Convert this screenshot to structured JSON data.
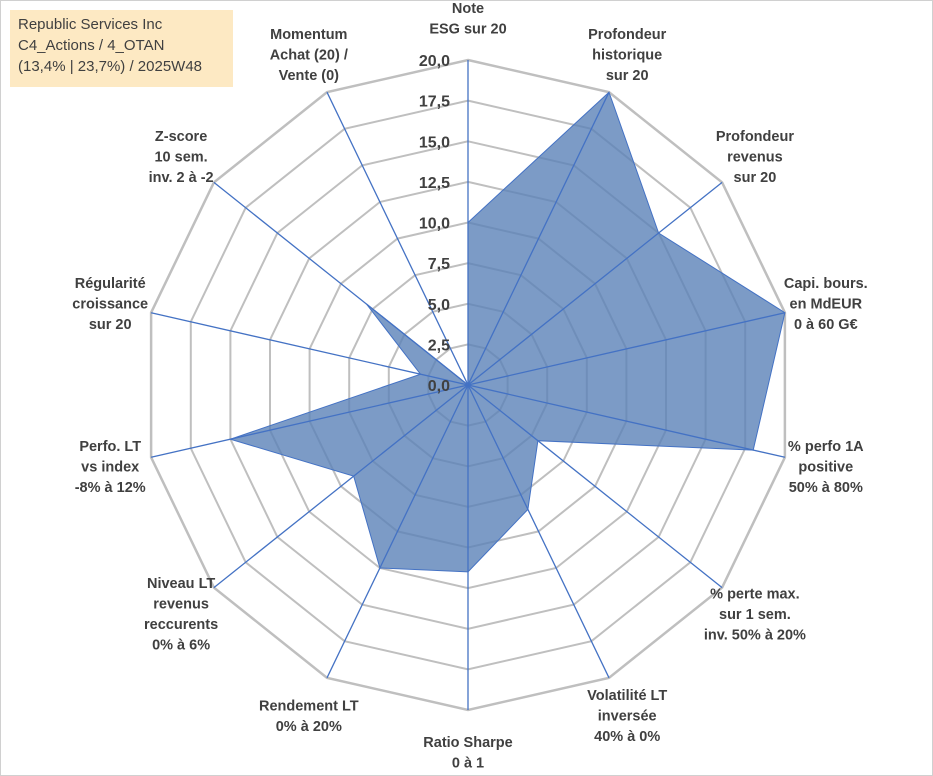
{
  "info": {
    "company": "Republic Services Inc",
    "portfolio": "C4_Actions / 4_OTAN",
    "stats": "(13,4% | 23,7%) / 2025W48"
  },
  "colors": {
    "fill": "#5b82b8",
    "stroke": "#4472c4",
    "grid": "#bfbfbf",
    "text": "#404040",
    "info_bg": "#fde9c3"
  },
  "chart_data": {
    "type": "radar",
    "title": "",
    "rmin": 0,
    "rmax": 20,
    "tick_step": 2.5,
    "tick_labels": [
      "0,0",
      "2,5",
      "5,0",
      "7,5",
      "10,0",
      "12,5",
      "15,0",
      "17,5",
      "20,0"
    ],
    "axes": [
      {
        "label": [
          "Note",
          "ESG sur 20"
        ],
        "value": 10
      },
      {
        "label": [
          "Profondeur",
          "historique",
          "sur 20"
        ],
        "value": 20
      },
      {
        "label": [
          "Profondeur",
          "revenus",
          "sur 20"
        ],
        "value": 15
      },
      {
        "label": [
          "Capi. bours.",
          "en MdEUR",
          "0 à 60 G€"
        ],
        "value": 20
      },
      {
        "label": [
          "% perfo 1A",
          "positive",
          "50% à 80%"
        ],
        "value": 18
      },
      {
        "label": [
          "% perte max.",
          "sur 1 sem.",
          "inv. 50% à 20%"
        ],
        "value": 5.5
      },
      {
        "label": [
          "Volatilité LT",
          "inversée",
          "40% à 0%"
        ],
        "value": 8.5
      },
      {
        "label": [
          "Ratio Sharpe",
          "0 à 1"
        ],
        "value": 11.5
      },
      {
        "label": [
          "Rendement LT",
          "0% à 20%"
        ],
        "value": 12.5
      },
      {
        "label": [
          "Niveau LT",
          "revenus",
          "reccurents",
          "0% à 6%"
        ],
        "value": 9
      },
      {
        "label": [
          "Perfo. LT",
          "vs index",
          "-8% à 12%"
        ],
        "value": 15
      },
      {
        "label": [
          "Régularité",
          "croissance",
          "sur 20"
        ],
        "value": 3
      },
      {
        "label": [
          "Z-score",
          "10 sem.",
          "inv. 2 à -2"
        ],
        "value": 8
      },
      {
        "label": [
          "Momentum",
          "Achat (20) /",
          "Vente (0)"
        ],
        "value": 0
      }
    ]
  }
}
